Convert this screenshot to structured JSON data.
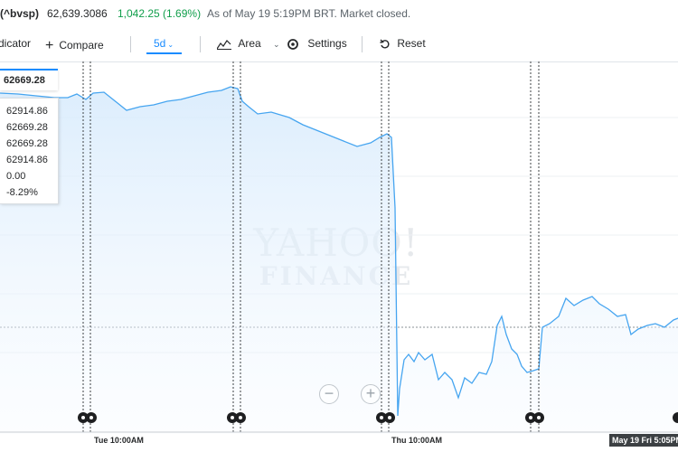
{
  "quote": {
    "symbol": "(^bvsp)",
    "price": "62,639.3086",
    "change": "1,042.25 (1.69%)",
    "status": "As of May 19 5:19PM BRT. Market closed.",
    "change_color": "#109e4b"
  },
  "toolbar": {
    "indicator_label": "dicator",
    "compare_label": "Compare",
    "range_label": "5d",
    "area_label": "Area",
    "settings_label": "Settings",
    "reset_label": "Reset",
    "accent_color": "#1a8cff"
  },
  "chart_data": {
    "type": "area",
    "price_tag": "62669.28",
    "tooltip": [
      "62914.86",
      "62669.28",
      "62669.28",
      "62914.86",
      "0.00",
      "-8.29%"
    ],
    "x_labels": [
      "Tue 10:00AM",
      "Thu 10:00AM",
      "May 19 Fri 5:05PM"
    ],
    "watermark": [
      "YAHOO!",
      "FINANCE"
    ],
    "series_color": "#46a5f0",
    "grid": true
  },
  "zoom": {
    "out_symbol": "−",
    "in_symbol": "+"
  }
}
